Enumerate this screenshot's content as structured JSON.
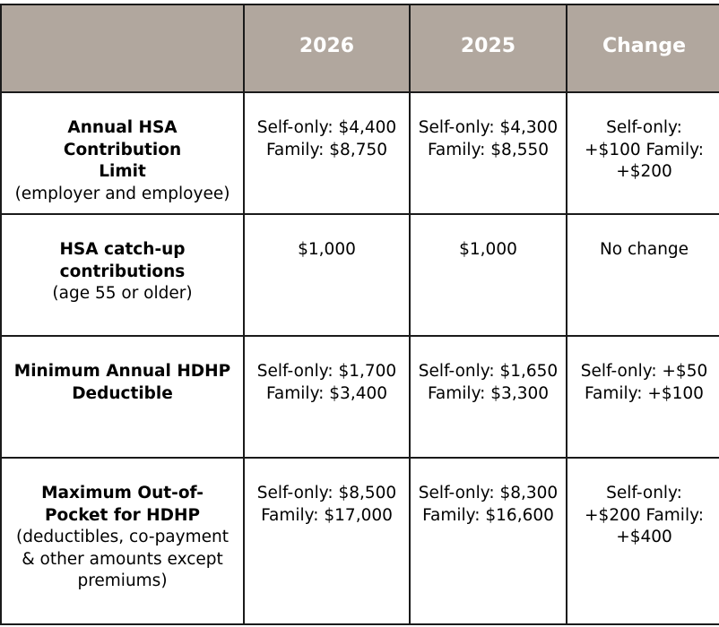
{
  "table": {
    "headers": [
      "",
      "2026",
      "2025",
      "Change"
    ],
    "rows": [
      {
        "label": "Annual HSA Contribution Limit",
        "note": "(employer and employee)",
        "y2026": "Self-only: $4,400 Family: $8,750",
        "y2025": "Self-only: $4,300 Family: $8,550",
        "change": "Self-only: +$100 Family: +$200"
      },
      {
        "label": "HSA catch-up contributions",
        "note": "(age 55 or older)",
        "y2026": "$1,000",
        "y2025": "$1,000",
        "change": "No change"
      },
      {
        "label": "Minimum Annual HDHP Deductible",
        "note": "",
        "y2026": "Self-only: $1,700 Family: $3,400",
        "y2025": "Self-only: $1,650 Family: $3,300",
        "change": "Self-only: +$50 Family: +$100"
      },
      {
        "label": "Maximum Out-of-Pocket for HDHP",
        "note": "(deductibles, co-payment & other amounts except premiums)",
        "y2026": "Self-only: $8,500 Family: $17,000",
        "y2025": "Self-only: $8,300 Family: $16,600",
        "change": "Self-only: +$200 Family: +$400"
      }
    ]
  }
}
